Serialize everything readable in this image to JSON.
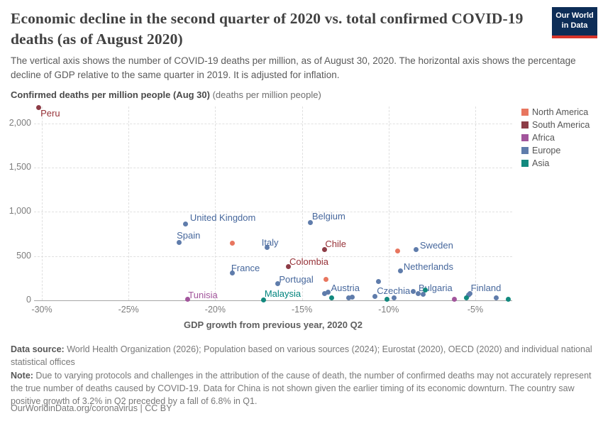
{
  "header": {
    "title": "Economic decline in the second quarter of 2020 vs. total confirmed COVID-19 deaths (as of August 2020)",
    "subtitle": "The vertical axis shows the number of COVID-19 deaths per million, as of August 30, 2020. The horizontal axis shows the percentage decline of GDP relative to the same quarter in 2019. It is adjusted for inflation.",
    "logo_line1": "Our World",
    "logo_line2": "in Data",
    "logo_bg_color": "#0d2d57",
    "logo_stripe_color": "#d7352a"
  },
  "chart_data": {
    "type": "scatter",
    "title": "Economic decline in the second quarter of 2020 vs. total confirmed COVID-19 deaths (as of August 2020)",
    "x_axis": {
      "title": "GDP growth from previous year, 2020 Q2",
      "range": [
        -30.6,
        -2.8
      ],
      "ticks": [
        {
          "v": -30,
          "label": "-30%"
        },
        {
          "v": -25,
          "label": "-25%"
        },
        {
          "v": -20,
          "label": "-20%"
        },
        {
          "v": -15,
          "label": "-15%"
        },
        {
          "v": -10,
          "label": "-10%"
        },
        {
          "v": -5,
          "label": "-5%"
        }
      ]
    },
    "y_axis": {
      "title_bold": "Confirmed deaths per million people (Aug 30)",
      "title_unit": " (deaths per million people)",
      "range": [
        0,
        2230
      ],
      "ticks": [
        {
          "v": 0,
          "label": "0"
        },
        {
          "v": 500,
          "label": "500"
        },
        {
          "v": 1000,
          "label": "1,000"
        },
        {
          "v": 1500,
          "label": "1,500"
        },
        {
          "v": 2000,
          "label": "2,000"
        }
      ]
    },
    "grid": true,
    "legend_position": "right",
    "legend": [
      {
        "label": "North America",
        "color": "#e8765f"
      },
      {
        "label": "South America",
        "color": "#8d3c46"
      },
      {
        "label": "Africa",
        "color": "#a2559c"
      },
      {
        "label": "Europe",
        "color": "#5f7cab"
      },
      {
        "label": "Asia",
        "color": "#12897e"
      }
    ],
    "series": [
      {
        "name": "North America",
        "color": "#e8765f",
        "label_color": "#e8765f",
        "points": [
          {
            "x": -19.0,
            "y": 650
          },
          {
            "x": -13.6,
            "y": 240
          },
          {
            "x": -9.5,
            "y": 560
          }
        ]
      },
      {
        "name": "South America",
        "color": "#8d3c46",
        "label_color": "#963137",
        "points": [
          {
            "x": -30.2,
            "y": 2180,
            "label": "Peru",
            "label_dx": 3,
            "label_dy": 1
          },
          {
            "x": -15.8,
            "y": 385,
            "label": "Colombia",
            "label_dx": 2,
            "label_dy": -14
          },
          {
            "x": -13.7,
            "y": 575,
            "label": "Chile",
            "label_dx": 1,
            "label_dy": -15
          }
        ]
      },
      {
        "name": "Africa",
        "color": "#a2559c",
        "label_color": "#a2559c",
        "points": [
          {
            "x": -21.6,
            "y": 10,
            "label": "Tunisia",
            "label_dx": 1,
            "label_dy": -14
          },
          {
            "x": -6.2,
            "y": 15
          }
        ]
      },
      {
        "name": "Europe",
        "color": "#5f7cab",
        "label_color": "#46679c",
        "points": [
          {
            "x": -22.1,
            "y": 655,
            "label": "Spain",
            "label_dx": -3,
            "label_dy": -17
          },
          {
            "x": -21.7,
            "y": 865,
            "label": "United Kingdom",
            "label_dx": 6,
            "label_dy": -16
          },
          {
            "x": -19.0,
            "y": 313,
            "label": "France",
            "label_dx": -2,
            "label_dy": -14
          },
          {
            "x": -17.0,
            "y": 600,
            "label": "Italy",
            "label_dx": -8,
            "label_dy": -14
          },
          {
            "x": -16.4,
            "y": 185,
            "label": "Portugal",
            "label_dx": 2,
            "label_dy": -14
          },
          {
            "x": -14.5,
            "y": 875,
            "label": "Belgium",
            "label_dx": 2,
            "label_dy": -17
          },
          {
            "x": -12.1,
            "y": 40,
            "label": "Austria",
            "label_dx": -30,
            "label_dy": -20
          },
          {
            "x": -10.8,
            "y": 48,
            "label": "Czechia",
            "label_dx": 3,
            "label_dy": -15
          },
          {
            "x": -9.3,
            "y": 330,
            "label": "Netherlands",
            "label_dx": 4,
            "label_dy": -14
          },
          {
            "x": -8.6,
            "y": 104,
            "label": "Bulgaria",
            "label_dx": 8,
            "label_dy": -12
          },
          {
            "x": -8.4,
            "y": 570,
            "label": "Sweden",
            "label_dx": 5,
            "label_dy": -14
          },
          {
            "x": -5.3,
            "y": 78,
            "label": "Finland",
            "label_dx": 1,
            "label_dy": -15
          },
          {
            "x": -13.7,
            "y": 80
          },
          {
            "x": -13.5,
            "y": 96
          },
          {
            "x": -12.3,
            "y": 25
          },
          {
            "x": -10.6,
            "y": 210
          },
          {
            "x": -9.7,
            "y": 30
          },
          {
            "x": -8.3,
            "y": 80
          },
          {
            "x": -8.0,
            "y": 70
          },
          {
            "x": -5.4,
            "y": 62
          },
          {
            "x": -3.8,
            "y": 30
          }
        ]
      },
      {
        "name": "Asia",
        "color": "#12897e",
        "label_color": "#00847e",
        "points": [
          {
            "x": -17.2,
            "y": 8,
            "label": "Malaysia",
            "label_dx": 1,
            "label_dy": -16
          },
          {
            "x": -13.3,
            "y": 25
          },
          {
            "x": -10.1,
            "y": 15
          },
          {
            "x": -7.9,
            "y": 120
          },
          {
            "x": -5.5,
            "y": 30
          },
          {
            "x": -3.1,
            "y": 15
          }
        ]
      }
    ]
  },
  "footer": {
    "data_source_label": "Data source:",
    "data_source_text": " World Health Organization (2026); Population based on various sources (2024); Eurostat (2020), OECD (2020) and individual national statistical offices",
    "note_label": "Note:",
    "note_text": " Due to varying protocols and challenges in the attribution of the cause of death, the number of confirmed deaths may not accurately represent the true number of deaths caused by COVID-19. Data for China is not shown given the earlier timing of its economic downturn. The country saw positive growth of 3.2% in Q2 preceded by a fall of 6.8% in Q1.",
    "license": "OurWorldinData.org/coronavirus | CC BY"
  }
}
